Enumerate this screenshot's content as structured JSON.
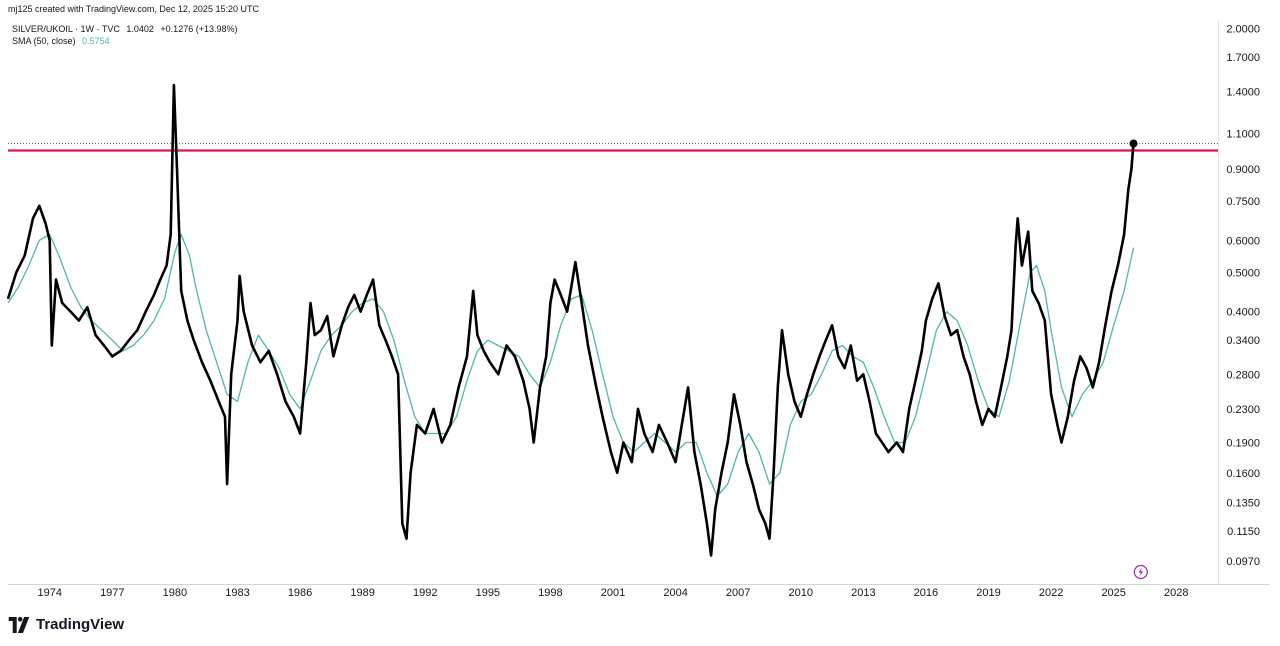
{
  "header": {
    "credit": "mj125 created with TradingView.com, Dec 12, 2025 15:20 UTC"
  },
  "legend": {
    "symbol": "SILVER/UKOIL · 1W · TVC",
    "last": "1.0402",
    "change": "+0.1276 (+13.98%)",
    "sma_label": "SMA (50, close)",
    "sma_value": "0.5754"
  },
  "brand": {
    "name": "TradingView",
    "logo_icon": "tradingview-logo-icon"
  },
  "colors": {
    "price_line": "#000000",
    "sma_line": "#4fb7b0",
    "horizontal_line": "#e0115f",
    "sma_value_text": "#4fb7b0",
    "lightning_icon": "#9c27b0"
  },
  "chart_data": {
    "type": "line",
    "scale": "log",
    "x_range": [
      1972.0,
      2030.0
    ],
    "y_range": [
      0.085,
      2.1
    ],
    "x_ticks": [
      "1974",
      "1977",
      "1980",
      "1983",
      "1986",
      "1989",
      "1992",
      "1995",
      "1998",
      "2001",
      "2004",
      "2007",
      "2010",
      "2013",
      "2016",
      "2019",
      "2022",
      "2025",
      "2028"
    ],
    "y_ticks": [
      "2.0000",
      "1.7000",
      "1.4000",
      "1.1000",
      "0.9000",
      "0.7500",
      "0.6000",
      "0.5000",
      "0.4000",
      "0.3400",
      "0.2800",
      "0.2300",
      "0.1900",
      "0.1600",
      "0.1350",
      "0.1150",
      "0.0970"
    ],
    "horizontal_line": {
      "value": 1.0,
      "label": "1.0000"
    },
    "last_point": {
      "x": 2025.95,
      "y": 1.0402
    },
    "series": [
      {
        "name": "SILVER/UKOIL",
        "points": [
          [
            1972.0,
            0.43
          ],
          [
            1972.4,
            0.5
          ],
          [
            1972.8,
            0.55
          ],
          [
            1973.2,
            0.68
          ],
          [
            1973.5,
            0.73
          ],
          [
            1973.8,
            0.66
          ],
          [
            1974.0,
            0.6
          ],
          [
            1974.1,
            0.33
          ],
          [
            1974.3,
            0.48
          ],
          [
            1974.6,
            0.42
          ],
          [
            1975.0,
            0.4
          ],
          [
            1975.4,
            0.38
          ],
          [
            1975.8,
            0.41
          ],
          [
            1976.2,
            0.35
          ],
          [
            1976.6,
            0.33
          ],
          [
            1977.0,
            0.31
          ],
          [
            1977.4,
            0.32
          ],
          [
            1977.8,
            0.34
          ],
          [
            1978.2,
            0.36
          ],
          [
            1978.6,
            0.4
          ],
          [
            1979.0,
            0.44
          ],
          [
            1979.3,
            0.48
          ],
          [
            1979.6,
            0.52
          ],
          [
            1979.8,
            0.62
          ],
          [
            1979.95,
            1.45
          ],
          [
            1980.1,
            0.9
          ],
          [
            1980.3,
            0.45
          ],
          [
            1980.6,
            0.38
          ],
          [
            1980.9,
            0.34
          ],
          [
            1981.3,
            0.3
          ],
          [
            1981.7,
            0.27
          ],
          [
            1982.1,
            0.24
          ],
          [
            1982.4,
            0.22
          ],
          [
            1982.5,
            0.15
          ],
          [
            1982.7,
            0.28
          ],
          [
            1983.0,
            0.38
          ],
          [
            1983.1,
            0.49
          ],
          [
            1983.3,
            0.4
          ],
          [
            1983.7,
            0.33
          ],
          [
            1984.1,
            0.3
          ],
          [
            1984.5,
            0.32
          ],
          [
            1984.9,
            0.28
          ],
          [
            1985.3,
            0.24
          ],
          [
            1985.7,
            0.22
          ],
          [
            1986.0,
            0.2
          ],
          [
            1986.3,
            0.3
          ],
          [
            1986.5,
            0.42
          ],
          [
            1986.7,
            0.35
          ],
          [
            1987.0,
            0.36
          ],
          [
            1987.3,
            0.39
          ],
          [
            1987.6,
            0.31
          ],
          [
            1988.0,
            0.37
          ],
          [
            1988.3,
            0.41
          ],
          [
            1988.6,
            0.44
          ],
          [
            1988.9,
            0.4
          ],
          [
            1989.2,
            0.44
          ],
          [
            1989.5,
            0.48
          ],
          [
            1989.8,
            0.37
          ],
          [
            1990.1,
            0.34
          ],
          [
            1990.4,
            0.31
          ],
          [
            1990.7,
            0.28
          ],
          [
            1990.9,
            0.12
          ],
          [
            1991.1,
            0.11
          ],
          [
            1991.3,
            0.16
          ],
          [
            1991.6,
            0.21
          ],
          [
            1992.0,
            0.2
          ],
          [
            1992.4,
            0.23
          ],
          [
            1992.8,
            0.19
          ],
          [
            1993.2,
            0.21
          ],
          [
            1993.6,
            0.26
          ],
          [
            1994.0,
            0.31
          ],
          [
            1994.3,
            0.45
          ],
          [
            1994.5,
            0.35
          ],
          [
            1994.8,
            0.32
          ],
          [
            1995.1,
            0.3
          ],
          [
            1995.5,
            0.28
          ],
          [
            1995.9,
            0.33
          ],
          [
            1996.3,
            0.31
          ],
          [
            1996.7,
            0.27
          ],
          [
            1997.0,
            0.23
          ],
          [
            1997.2,
            0.19
          ],
          [
            1997.5,
            0.26
          ],
          [
            1997.8,
            0.31
          ],
          [
            1998.0,
            0.42
          ],
          [
            1998.2,
            0.48
          ],
          [
            1998.5,
            0.44
          ],
          [
            1998.8,
            0.4
          ],
          [
            1999.0,
            0.46
          ],
          [
            1999.2,
            0.53
          ],
          [
            1999.5,
            0.42
          ],
          [
            1999.8,
            0.33
          ],
          [
            2000.2,
            0.26
          ],
          [
            2000.5,
            0.22
          ],
          [
            2000.9,
            0.18
          ],
          [
            2001.2,
            0.16
          ],
          [
            2001.5,
            0.19
          ],
          [
            2001.9,
            0.17
          ],
          [
            2002.2,
            0.23
          ],
          [
            2002.5,
            0.2
          ],
          [
            2002.9,
            0.18
          ],
          [
            2003.2,
            0.21
          ],
          [
            2003.6,
            0.19
          ],
          [
            2004.0,
            0.17
          ],
          [
            2004.3,
            0.21
          ],
          [
            2004.6,
            0.26
          ],
          [
            2004.9,
            0.18
          ],
          [
            2005.2,
            0.15
          ],
          [
            2005.5,
            0.12
          ],
          [
            2005.7,
            0.1
          ],
          [
            2005.9,
            0.13
          ],
          [
            2006.2,
            0.16
          ],
          [
            2006.5,
            0.19
          ],
          [
            2006.8,
            0.25
          ],
          [
            2007.1,
            0.21
          ],
          [
            2007.4,
            0.17
          ],
          [
            2007.7,
            0.15
          ],
          [
            2008.0,
            0.13
          ],
          [
            2008.3,
            0.12
          ],
          [
            2008.5,
            0.11
          ],
          [
            2008.7,
            0.16
          ],
          [
            2008.9,
            0.26
          ],
          [
            2009.1,
            0.36
          ],
          [
            2009.4,
            0.28
          ],
          [
            2009.7,
            0.24
          ],
          [
            2010.0,
            0.22
          ],
          [
            2010.3,
            0.25
          ],
          [
            2010.6,
            0.28
          ],
          [
            2010.9,
            0.31
          ],
          [
            2011.2,
            0.34
          ],
          [
            2011.5,
            0.37
          ],
          [
            2011.8,
            0.31
          ],
          [
            2012.1,
            0.29
          ],
          [
            2012.4,
            0.33
          ],
          [
            2012.7,
            0.27
          ],
          [
            2013.0,
            0.28
          ],
          [
            2013.3,
            0.24
          ],
          [
            2013.6,
            0.2
          ],
          [
            2013.9,
            0.19
          ],
          [
            2014.2,
            0.18
          ],
          [
            2014.6,
            0.19
          ],
          [
            2014.9,
            0.18
          ],
          [
            2015.2,
            0.23
          ],
          [
            2015.5,
            0.27
          ],
          [
            2015.8,
            0.32
          ],
          [
            2016.0,
            0.38
          ],
          [
            2016.3,
            0.43
          ],
          [
            2016.6,
            0.47
          ],
          [
            2016.9,
            0.39
          ],
          [
            2017.2,
            0.35
          ],
          [
            2017.5,
            0.36
          ],
          [
            2017.8,
            0.31
          ],
          [
            2018.1,
            0.28
          ],
          [
            2018.4,
            0.24
          ],
          [
            2018.7,
            0.21
          ],
          [
            2019.0,
            0.23
          ],
          [
            2019.3,
            0.22
          ],
          [
            2019.6,
            0.26
          ],
          [
            2019.9,
            0.31
          ],
          [
            2020.1,
            0.36
          ],
          [
            2020.3,
            0.58
          ],
          [
            2020.4,
            0.68
          ],
          [
            2020.6,
            0.52
          ],
          [
            2020.9,
            0.63
          ],
          [
            2021.1,
            0.45
          ],
          [
            2021.4,
            0.42
          ],
          [
            2021.7,
            0.38
          ],
          [
            2022.0,
            0.25
          ],
          [
            2022.3,
            0.21
          ],
          [
            2022.5,
            0.19
          ],
          [
            2022.8,
            0.22
          ],
          [
            2023.1,
            0.27
          ],
          [
            2023.4,
            0.31
          ],
          [
            2023.7,
            0.29
          ],
          [
            2024.0,
            0.26
          ],
          [
            2024.3,
            0.3
          ],
          [
            2024.6,
            0.37
          ],
          [
            2024.9,
            0.45
          ],
          [
            2025.2,
            0.52
          ],
          [
            2025.5,
            0.62
          ],
          [
            2025.7,
            0.8
          ],
          [
            2025.85,
            0.9
          ],
          [
            2025.95,
            1.0402
          ]
        ]
      },
      {
        "name": "SMA (50, close)",
        "points": [
          [
            1972.0,
            0.42
          ],
          [
            1972.5,
            0.46
          ],
          [
            1973.0,
            0.52
          ],
          [
            1973.5,
            0.6
          ],
          [
            1974.0,
            0.62
          ],
          [
            1974.5,
            0.54
          ],
          [
            1975.0,
            0.46
          ],
          [
            1975.5,
            0.41
          ],
          [
            1976.0,
            0.38
          ],
          [
            1976.5,
            0.36
          ],
          [
            1977.0,
            0.34
          ],
          [
            1977.5,
            0.32
          ],
          [
            1978.0,
            0.33
          ],
          [
            1978.5,
            0.35
          ],
          [
            1979.0,
            0.38
          ],
          [
            1979.5,
            0.43
          ],
          [
            1980.0,
            0.56
          ],
          [
            1980.3,
            0.62
          ],
          [
            1980.7,
            0.55
          ],
          [
            1981.0,
            0.46
          ],
          [
            1981.5,
            0.36
          ],
          [
            1982.0,
            0.3
          ],
          [
            1982.5,
            0.25
          ],
          [
            1983.0,
            0.24
          ],
          [
            1983.5,
            0.3
          ],
          [
            1984.0,
            0.35
          ],
          [
            1984.5,
            0.32
          ],
          [
            1985.0,
            0.29
          ],
          [
            1985.5,
            0.25
          ],
          [
            1986.0,
            0.23
          ],
          [
            1986.5,
            0.27
          ],
          [
            1987.0,
            0.32
          ],
          [
            1987.5,
            0.35
          ],
          [
            1988.0,
            0.37
          ],
          [
            1988.5,
            0.4
          ],
          [
            1989.0,
            0.42
          ],
          [
            1989.5,
            0.43
          ],
          [
            1990.0,
            0.4
          ],
          [
            1990.5,
            0.34
          ],
          [
            1991.0,
            0.27
          ],
          [
            1991.5,
            0.22
          ],
          [
            1992.0,
            0.2
          ],
          [
            1992.5,
            0.2
          ],
          [
            1993.0,
            0.2
          ],
          [
            1993.5,
            0.22
          ],
          [
            1994.0,
            0.27
          ],
          [
            1994.5,
            0.32
          ],
          [
            1995.0,
            0.34
          ],
          [
            1995.5,
            0.33
          ],
          [
            1996.0,
            0.32
          ],
          [
            1996.5,
            0.31
          ],
          [
            1997.0,
            0.28
          ],
          [
            1997.5,
            0.26
          ],
          [
            1998.0,
            0.3
          ],
          [
            1998.5,
            0.37
          ],
          [
            1999.0,
            0.43
          ],
          [
            1999.5,
            0.44
          ],
          [
            2000.0,
            0.36
          ],
          [
            2000.5,
            0.28
          ],
          [
            2001.0,
            0.22
          ],
          [
            2001.5,
            0.19
          ],
          [
            2002.0,
            0.18
          ],
          [
            2002.5,
            0.19
          ],
          [
            2003.0,
            0.2
          ],
          [
            2003.5,
            0.19
          ],
          [
            2004.0,
            0.18
          ],
          [
            2004.5,
            0.19
          ],
          [
            2005.0,
            0.19
          ],
          [
            2005.5,
            0.16
          ],
          [
            2006.0,
            0.14
          ],
          [
            2006.5,
            0.15
          ],
          [
            2007.0,
            0.18
          ],
          [
            2007.5,
            0.2
          ],
          [
            2008.0,
            0.18
          ],
          [
            2008.5,
            0.15
          ],
          [
            2009.0,
            0.16
          ],
          [
            2009.5,
            0.21
          ],
          [
            2010.0,
            0.24
          ],
          [
            2010.5,
            0.25
          ],
          [
            2011.0,
            0.28
          ],
          [
            2011.5,
            0.32
          ],
          [
            2012.0,
            0.33
          ],
          [
            2012.5,
            0.31
          ],
          [
            2013.0,
            0.3
          ],
          [
            2013.5,
            0.26
          ],
          [
            2014.0,
            0.22
          ],
          [
            2014.5,
            0.19
          ],
          [
            2015.0,
            0.19
          ],
          [
            2015.5,
            0.22
          ],
          [
            2016.0,
            0.28
          ],
          [
            2016.5,
            0.36
          ],
          [
            2017.0,
            0.4
          ],
          [
            2017.5,
            0.38
          ],
          [
            2018.0,
            0.33
          ],
          [
            2018.5,
            0.27
          ],
          [
            2019.0,
            0.23
          ],
          [
            2019.5,
            0.22
          ],
          [
            2020.0,
            0.27
          ],
          [
            2020.5,
            0.37
          ],
          [
            2021.0,
            0.5
          ],
          [
            2021.3,
            0.52
          ],
          [
            2021.7,
            0.45
          ],
          [
            2022.0,
            0.36
          ],
          [
            2022.5,
            0.26
          ],
          [
            2023.0,
            0.22
          ],
          [
            2023.5,
            0.25
          ],
          [
            2024.0,
            0.27
          ],
          [
            2024.5,
            0.3
          ],
          [
            2025.0,
            0.37
          ],
          [
            2025.5,
            0.45
          ],
          [
            2025.95,
            0.5754
          ]
        ]
      }
    ]
  }
}
